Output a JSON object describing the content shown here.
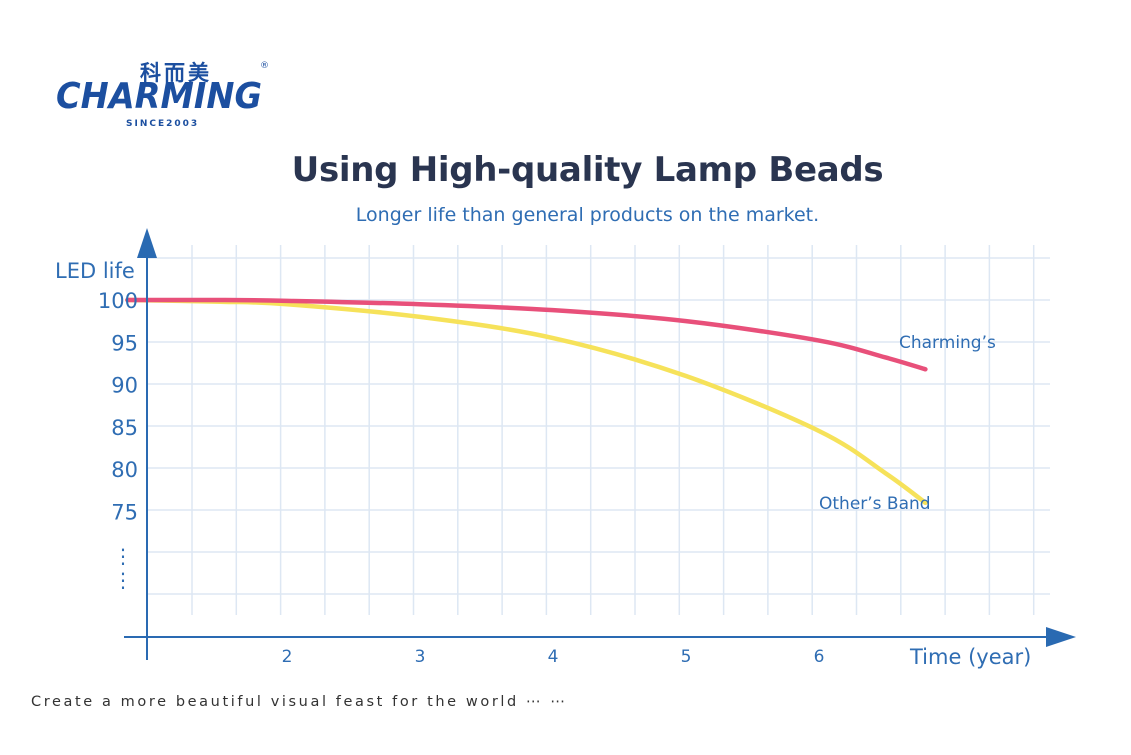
{
  "logo": {
    "brand": "CHARMING",
    "cn_text": "科而美",
    "since": "SINCE2003",
    "registered_mark": "®"
  },
  "page": {
    "title": "Using High-quality Lamp Beads",
    "subtitle": "Longer life than general products on the market.",
    "footer": "Create a more beautiful visual feast for the world ⋯ ⋯"
  },
  "colors": {
    "axis": "#2a6ab2",
    "grid": "#dde7f3",
    "charming": "#e8507a",
    "others": "#f6e25a",
    "text_blue": "#2f6db3",
    "title": "#2a3550"
  },
  "chart_data": {
    "type": "line",
    "title": "Using High-quality Lamp Beads",
    "subtitle": "Longer life than general products on the market.",
    "xlabel": "Time (year)",
    "ylabel": "LED life",
    "x_ticks": [
      2,
      3,
      4,
      5,
      6
    ],
    "y_ticks": [
      100,
      95,
      90,
      85,
      80,
      75
    ],
    "y_break_marker": "⋮",
    "grid": true,
    "series": [
      {
        "name": "Charming’s",
        "color": "#e8507a",
        "x": [
          0.8,
          1.5,
          2.0,
          3.0,
          4.0,
          5.0,
          6.0,
          6.5,
          6.8
        ],
        "y": [
          100,
          100,
          99.9,
          99.5,
          98.8,
          97.5,
          95.2,
          93.2,
          91.8
        ]
      },
      {
        "name": "Other’s Band",
        "color": "#f6e25a",
        "x": [
          0.8,
          1.5,
          2.0,
          3.0,
          4.0,
          5.0,
          6.0,
          6.5,
          6.8
        ],
        "y": [
          100,
          99.8,
          99.5,
          98.0,
          95.5,
          91.0,
          84.5,
          79.5,
          76.0
        ]
      }
    ],
    "legend": "inline labels near line ends"
  }
}
